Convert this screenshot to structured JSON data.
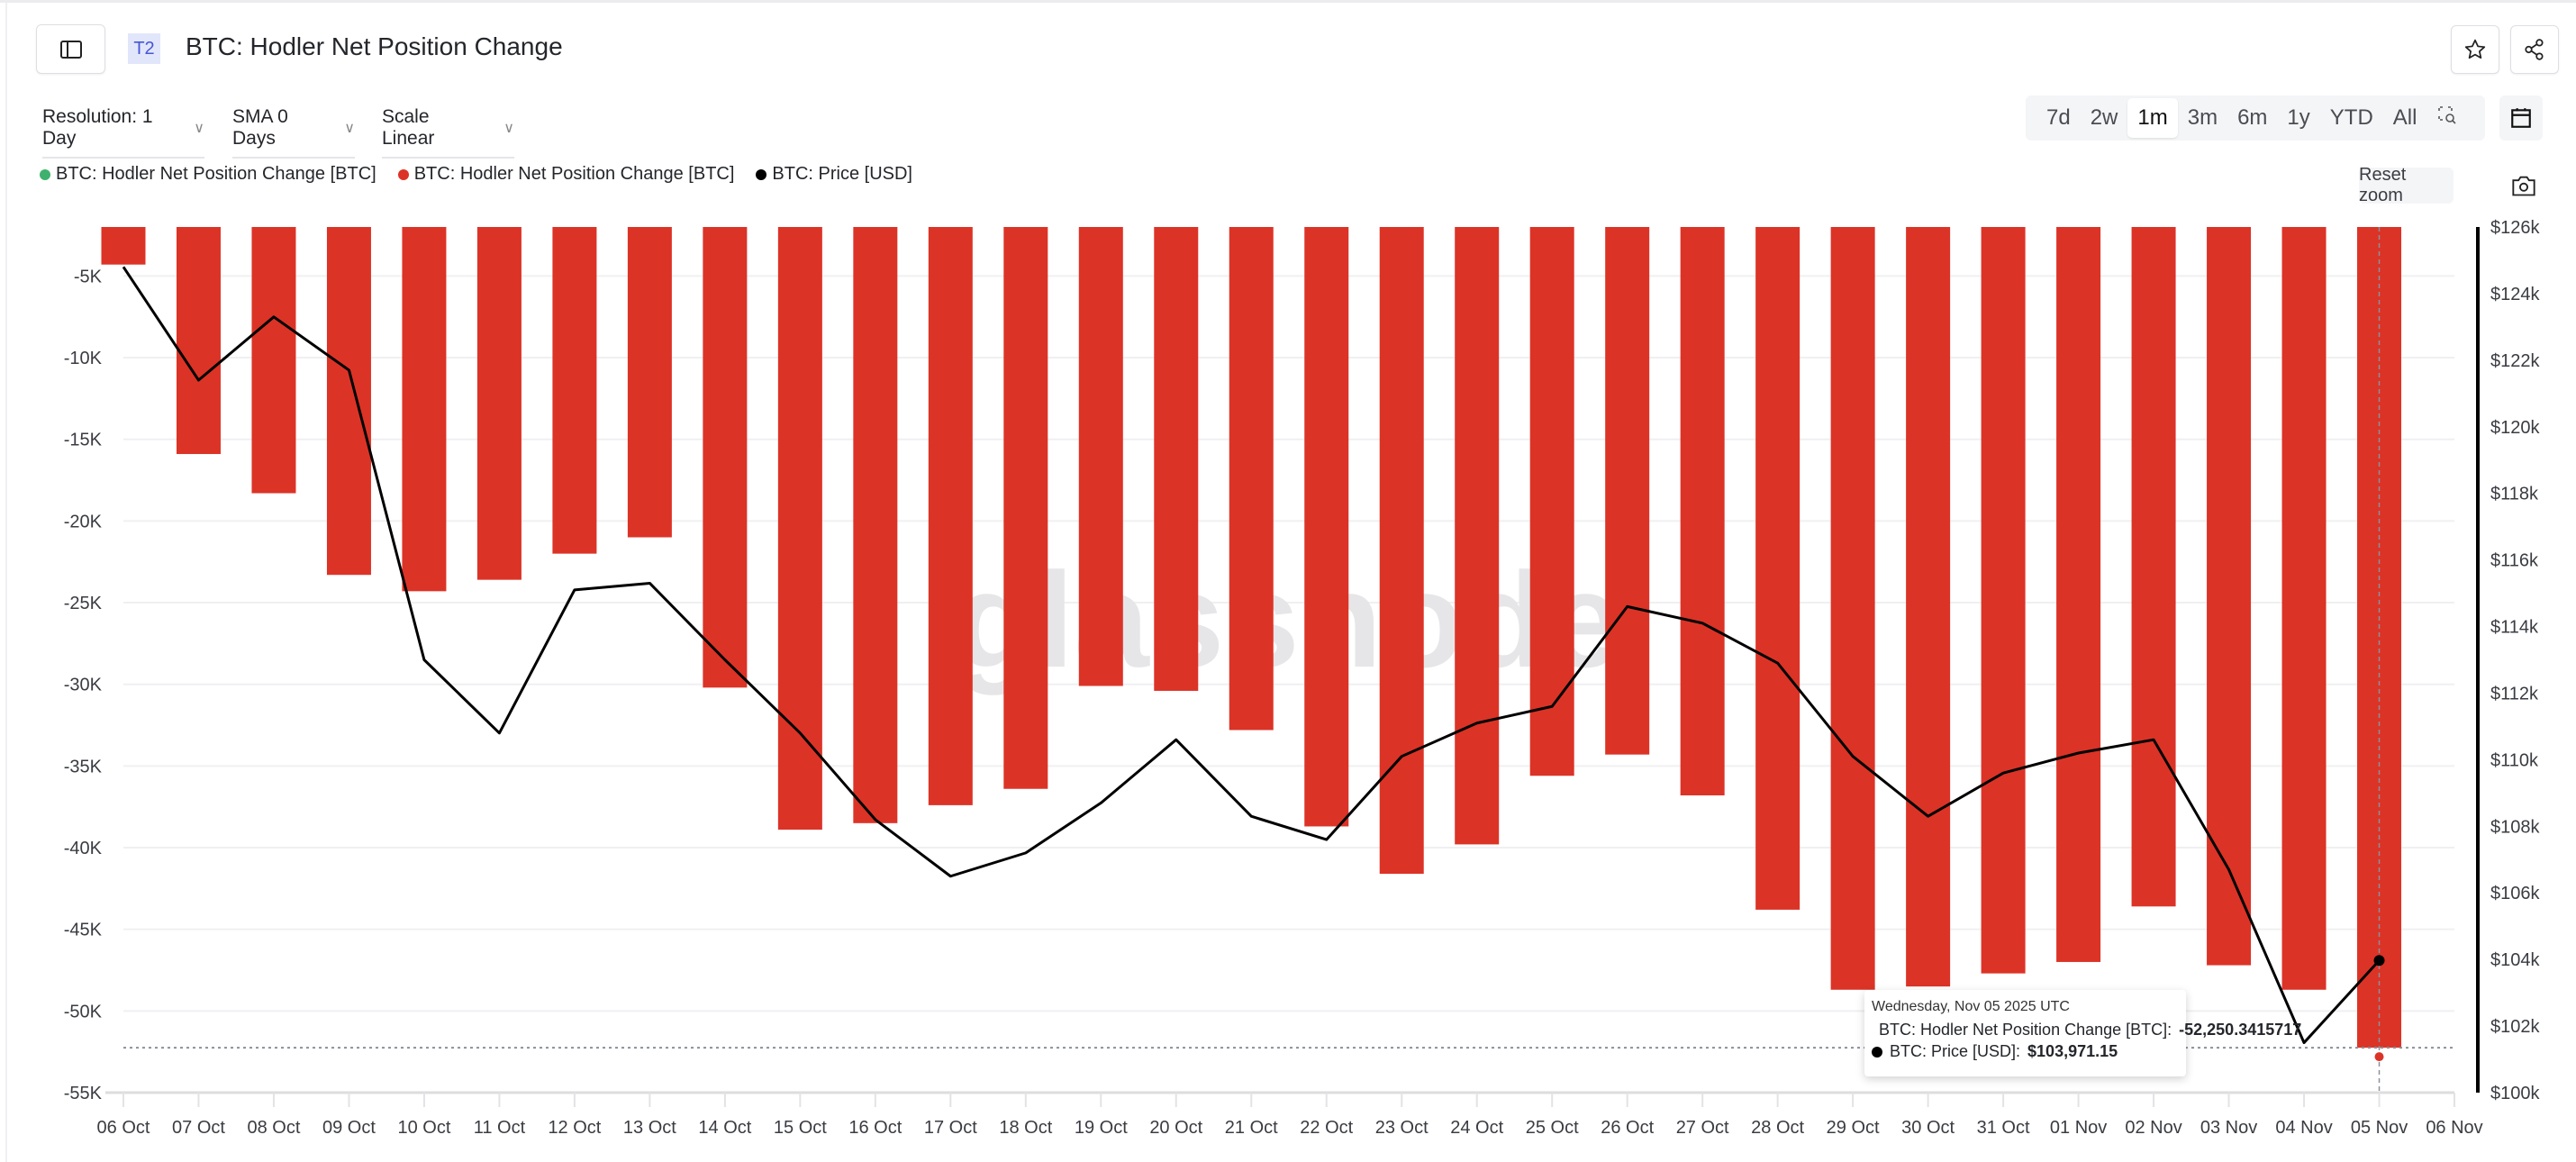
{
  "header": {
    "badge": "T2",
    "title": "BTC: Hodler Net Position Change"
  },
  "controls": {
    "resolution": "Resolution: 1 Day",
    "sma": "SMA 0 Days",
    "scale": "Scale Linear",
    "ranges": [
      "7d",
      "2w",
      "1m",
      "3m",
      "6m",
      "1y",
      "YTD",
      "All"
    ],
    "active_range": "1m",
    "reset_zoom": "Reset zoom"
  },
  "legend": [
    {
      "label": "BTC: Hodler Net Position Change [BTC]",
      "color": "#3fb16e"
    },
    {
      "label": "BTC: Hodler Net Position Change [BTC]",
      "color": "#dc3327"
    },
    {
      "label": "BTC: Price [USD]",
      "color": "#000000"
    }
  ],
  "watermark": "glassnode",
  "tooltip": {
    "date": "Wednesday, Nov 05 2025 UTC",
    "rows": [
      {
        "label": "BTC: Hodler Net Position Change [BTC]: ",
        "value": "-52,250.3415717",
        "color": "#dc3327"
      },
      {
        "label": "BTC: Price [USD]: ",
        "value": "$103,971.15",
        "color": "#000000"
      }
    ]
  },
  "chart_data": {
    "type": "bar",
    "x_ticks": [
      "06 Oct",
      "07 Oct",
      "08 Oct",
      "09 Oct",
      "10 Oct",
      "11 Oct",
      "12 Oct",
      "13 Oct",
      "14 Oct",
      "15 Oct",
      "16 Oct",
      "17 Oct",
      "18 Oct",
      "19 Oct",
      "20 Oct",
      "21 Oct",
      "22 Oct",
      "23 Oct",
      "24 Oct",
      "25 Oct",
      "26 Oct",
      "27 Oct",
      "28 Oct",
      "29 Oct",
      "30 Oct",
      "31 Oct",
      "01 Nov",
      "02 Nov",
      "03 Nov",
      "04 Nov",
      "05 Nov",
      "06 Nov"
    ],
    "categories": [
      "06 Oct",
      "07 Oct",
      "08 Oct",
      "09 Oct",
      "10 Oct",
      "11 Oct",
      "12 Oct",
      "13 Oct",
      "14 Oct",
      "15 Oct",
      "16 Oct",
      "17 Oct",
      "18 Oct",
      "19 Oct",
      "20 Oct",
      "21 Oct",
      "22 Oct",
      "23 Oct",
      "24 Oct",
      "25 Oct",
      "26 Oct",
      "27 Oct",
      "28 Oct",
      "29 Oct",
      "30 Oct",
      "31 Oct",
      "01 Nov",
      "02 Nov",
      "03 Nov",
      "04 Nov",
      "05 Nov"
    ],
    "series": [
      {
        "name": "BTC: Hodler Net Position Change [BTC]",
        "type": "bar",
        "axis": "left",
        "color": "#dc3327",
        "values": [
          -4300,
          -15900,
          -18300,
          -23300,
          -24300,
          -23600,
          -22000,
          -21000,
          -30200,
          -38900,
          -38500,
          -37400,
          -36400,
          -30100,
          -30400,
          -32800,
          -38700,
          -41600,
          -39800,
          -35600,
          -34300,
          -36800,
          -43800,
          -48700,
          -48500,
          -47700,
          -47000,
          -43600,
          -47200,
          -48700,
          -52250.34
        ]
      },
      {
        "name": "BTC: Price [USD]",
        "type": "line",
        "axis": "right",
        "color": "#000000",
        "values": [
          124800,
          121400,
          123300,
          121700,
          113000,
          110800,
          115100,
          115300,
          113000,
          110800,
          108200,
          106500,
          107200,
          108700,
          110600,
          108300,
          107600,
          110100,
          111100,
          111600,
          114600,
          114100,
          112900,
          110100,
          108300,
          109600,
          110200,
          110600,
          106700,
          101500,
          103971.15
        ]
      }
    ],
    "y_left": {
      "ticks": [
        "-5K",
        "-10K",
        "-15K",
        "-20K",
        "-25K",
        "-30K",
        "-35K",
        "-40K",
        "-45K",
        "-50K",
        "-55K"
      ],
      "tick_values": [
        -5000,
        -10000,
        -15000,
        -20000,
        -25000,
        -30000,
        -35000,
        -40000,
        -45000,
        -50000,
        -55000
      ],
      "ylim": [
        -55000,
        -2000
      ]
    },
    "y_right": {
      "ticks": [
        "$100k",
        "$102k",
        "$104k",
        "$106k",
        "$108k",
        "$110k",
        "$112k",
        "$114k",
        "$116k",
        "$118k",
        "$120k",
        "$122k",
        "$124k",
        "$126k"
      ],
      "tick_values": [
        100000,
        102000,
        104000,
        106000,
        108000,
        110000,
        112000,
        114000,
        116000,
        118000,
        120000,
        122000,
        124000,
        126000
      ],
      "ylim": [
        100000,
        126000
      ]
    },
    "grid": true,
    "legend_position": "top-left",
    "crosshair_value": -52250.34
  }
}
